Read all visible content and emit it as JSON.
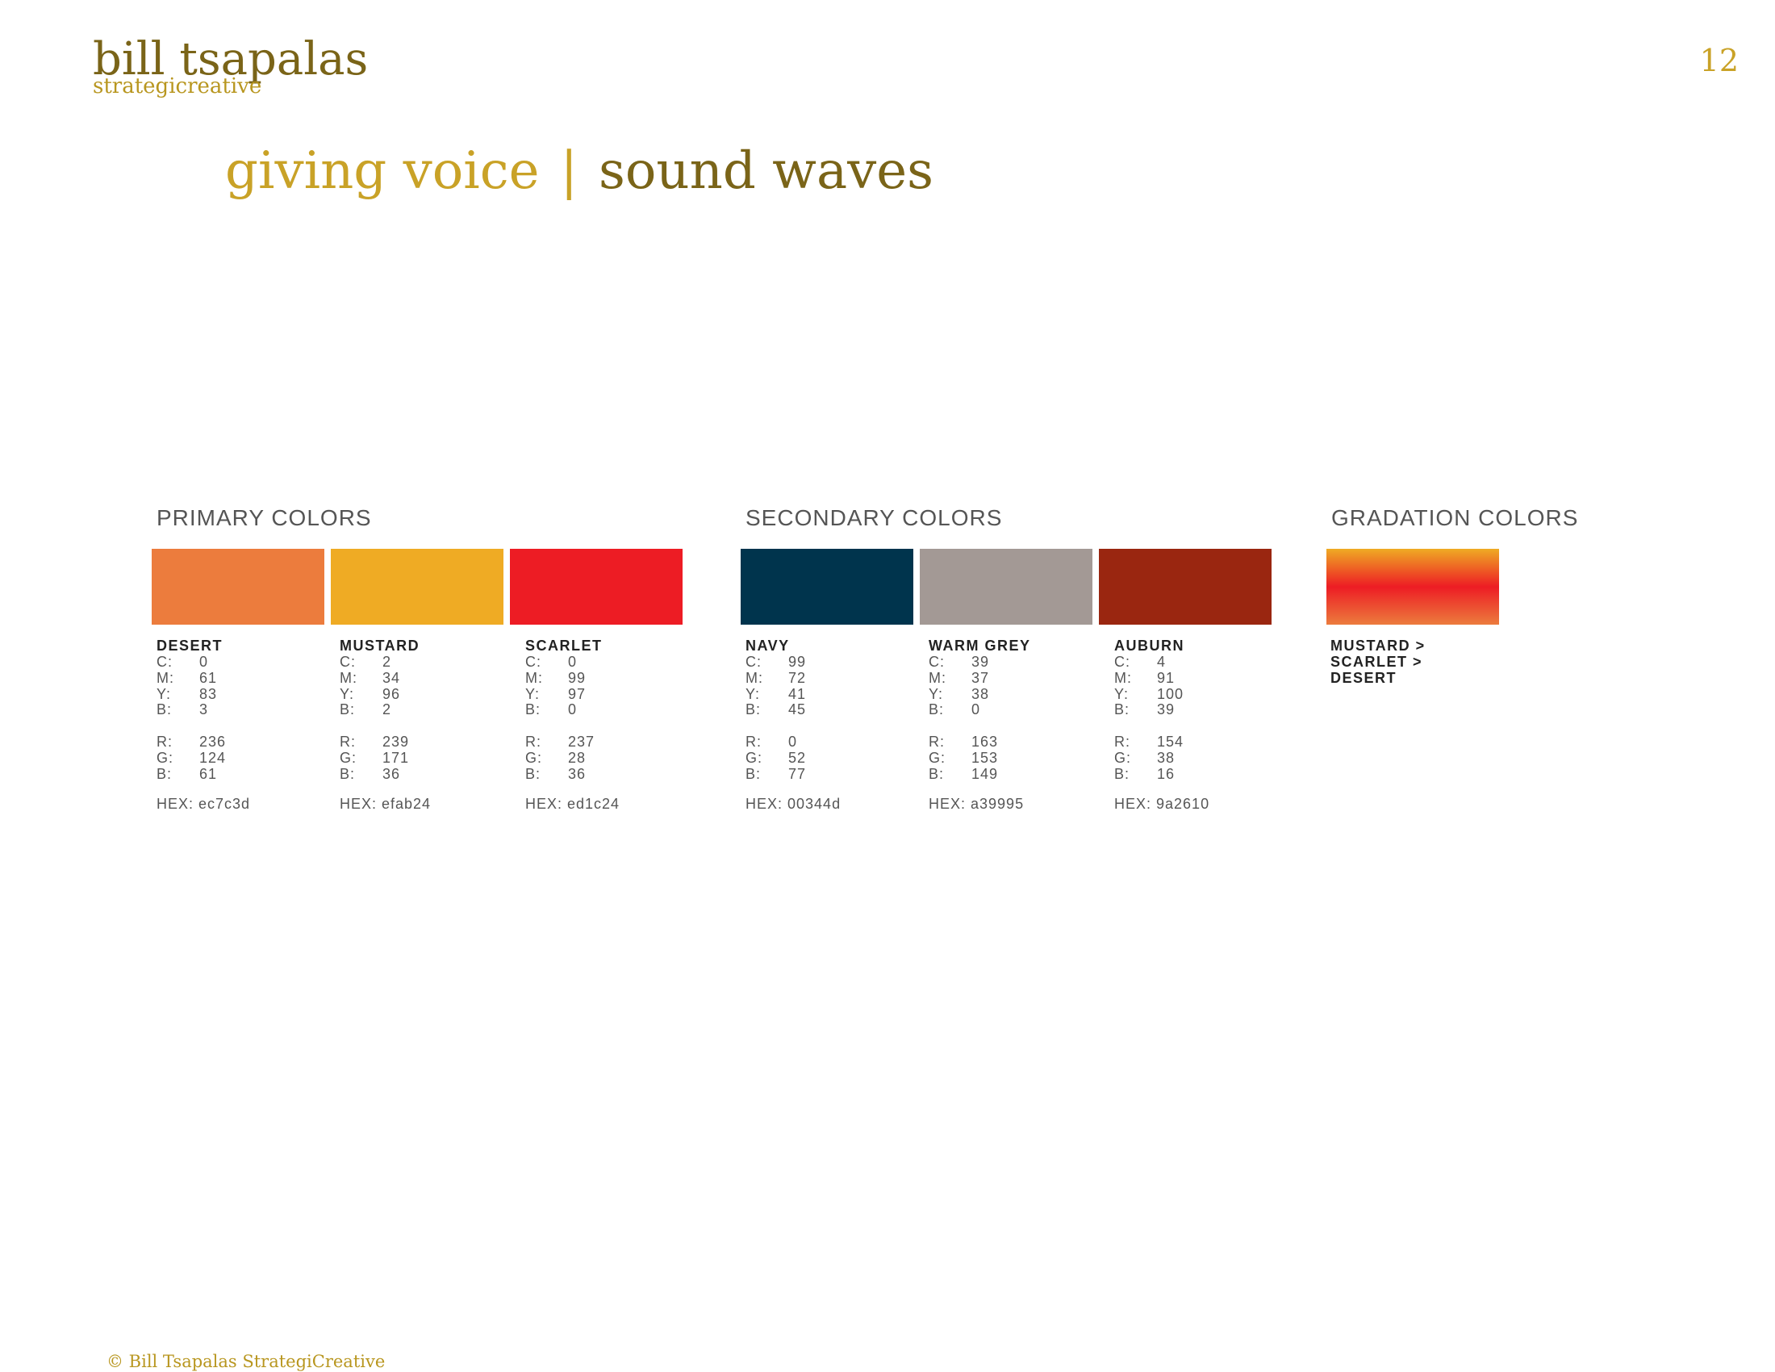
{
  "header": {
    "brand": "bill tsapalas",
    "tagline": "strategicreative",
    "page_number": "12"
  },
  "title": {
    "part1": "giving voice",
    "separator": "|",
    "part2": "sound waves"
  },
  "sections": [
    {
      "heading": "PRIMARY COLORS",
      "swatches": [
        {
          "name": "DESERT",
          "color": "#ec7c3d",
          "cmyk": [
            {
              "label": "C:",
              "value": 0
            },
            {
              "label": "M:",
              "value": 61
            },
            {
              "label": "Y:",
              "value": 83
            },
            {
              "label": "B:",
              "value": 3
            }
          ],
          "rgb": [
            {
              "label": "R:",
              "value": 236
            },
            {
              "label": "G:",
              "value": 124
            },
            {
              "label": "B:",
              "value": 61
            }
          ],
          "hex": "HEX: ec7c3d"
        },
        {
          "name": "MUSTARD",
          "color": "#efab24",
          "cmyk": [
            {
              "label": "C:",
              "value": 2
            },
            {
              "label": "M:",
              "value": 34
            },
            {
              "label": "Y:",
              "value": 96
            },
            {
              "label": "B:",
              "value": 2
            }
          ],
          "rgb": [
            {
              "label": "R:",
              "value": 239
            },
            {
              "label": "G:",
              "value": 171
            },
            {
              "label": "B:",
              "value": 36
            }
          ],
          "hex": "HEX: efab24"
        },
        {
          "name": "SCARLET",
          "color": "#ed1c24",
          "cmyk": [
            {
              "label": "C:",
              "value": 0
            },
            {
              "label": "M:",
              "value": 99
            },
            {
              "label": "Y:",
              "value": 97
            },
            {
              "label": "B:",
              "value": 0
            }
          ],
          "rgb": [
            {
              "label": "R:",
              "value": 237
            },
            {
              "label": "G:",
              "value": 28
            },
            {
              "label": "B:",
              "value": 36
            }
          ],
          "hex": "HEX: ed1c24"
        }
      ]
    },
    {
      "heading": "SECONDARY COLORS",
      "swatches": [
        {
          "name": "NAVY",
          "color": "#00344d",
          "cmyk": [
            {
              "label": "C:",
              "value": 99
            },
            {
              "label": "M:",
              "value": 72
            },
            {
              "label": "Y:",
              "value": 41
            },
            {
              "label": "B:",
              "value": 45
            }
          ],
          "rgb": [
            {
              "label": "R:",
              "value": 0
            },
            {
              "label": "G:",
              "value": 52
            },
            {
              "label": "B:",
              "value": 77
            }
          ],
          "hex": "HEX: 00344d"
        },
        {
          "name": "WARM GREY",
          "color": "#a39995",
          "cmyk": [
            {
              "label": "C:",
              "value": 39
            },
            {
              "label": "M:",
              "value": 37
            },
            {
              "label": "Y:",
              "value": 38
            },
            {
              "label": "B:",
              "value": 0
            }
          ],
          "rgb": [
            {
              "label": "R:",
              "value": 163
            },
            {
              "label": "G:",
              "value": 153
            },
            {
              "label": "B:",
              "value": 149
            }
          ],
          "hex": "HEX: a39995"
        },
        {
          "name": "AUBURN",
          "color": "#9a2610",
          "cmyk": [
            {
              "label": "C:",
              "value": 4
            },
            {
              "label": "M:",
              "value": 91
            },
            {
              "label": "Y:",
              "value": 100
            },
            {
              "label": "B:",
              "value": 39
            }
          ],
          "rgb": [
            {
              "label": "R:",
              "value": 154
            },
            {
              "label": "G:",
              "value": 38
            },
            {
              "label": "B:",
              "value": 16
            }
          ],
          "hex": "HEX: 9a2610"
        }
      ]
    },
    {
      "heading": "GRADATION COLORS",
      "gradient": [
        "#efab24",
        "#ed1c24",
        "#ec7c3d"
      ],
      "names": [
        "MUSTARD >",
        "SCARLET >",
        "DESERT"
      ]
    }
  ],
  "footer": "© Bill Tsapalas StrategiCreative"
}
